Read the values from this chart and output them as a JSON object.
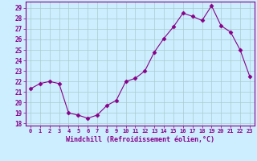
{
  "x": [
    0,
    1,
    2,
    3,
    4,
    5,
    6,
    7,
    8,
    9,
    10,
    11,
    12,
    13,
    14,
    15,
    16,
    17,
    18,
    19,
    20,
    21,
    22,
    23
  ],
  "y": [
    21.3,
    21.8,
    22.0,
    21.8,
    19.0,
    18.8,
    18.5,
    18.8,
    19.7,
    20.2,
    22.0,
    22.3,
    23.0,
    24.8,
    26.1,
    27.2,
    28.5,
    28.2,
    27.8,
    29.2,
    27.3,
    26.7,
    25.0,
    22.5
  ],
  "line_color": "#880088",
  "marker": "D",
  "marker_size": 2.5,
  "bg_color": "#cceeff",
  "grid_color": "#aacccc",
  "xlabel": "Windchill (Refroidissement éolien,°C)",
  "xlabel_color": "#880088",
  "tick_color": "#880088",
  "spine_color": "#880088",
  "ylim": [
    17.8,
    29.6
  ],
  "yticks": [
    18,
    19,
    20,
    21,
    22,
    23,
    24,
    25,
    26,
    27,
    28,
    29
  ],
  "xlim": [
    -0.5,
    23.5
  ],
  "xticks": [
    0,
    1,
    2,
    3,
    4,
    5,
    6,
    7,
    8,
    9,
    10,
    11,
    12,
    13,
    14,
    15,
    16,
    17,
    18,
    19,
    20,
    21,
    22,
    23
  ]
}
